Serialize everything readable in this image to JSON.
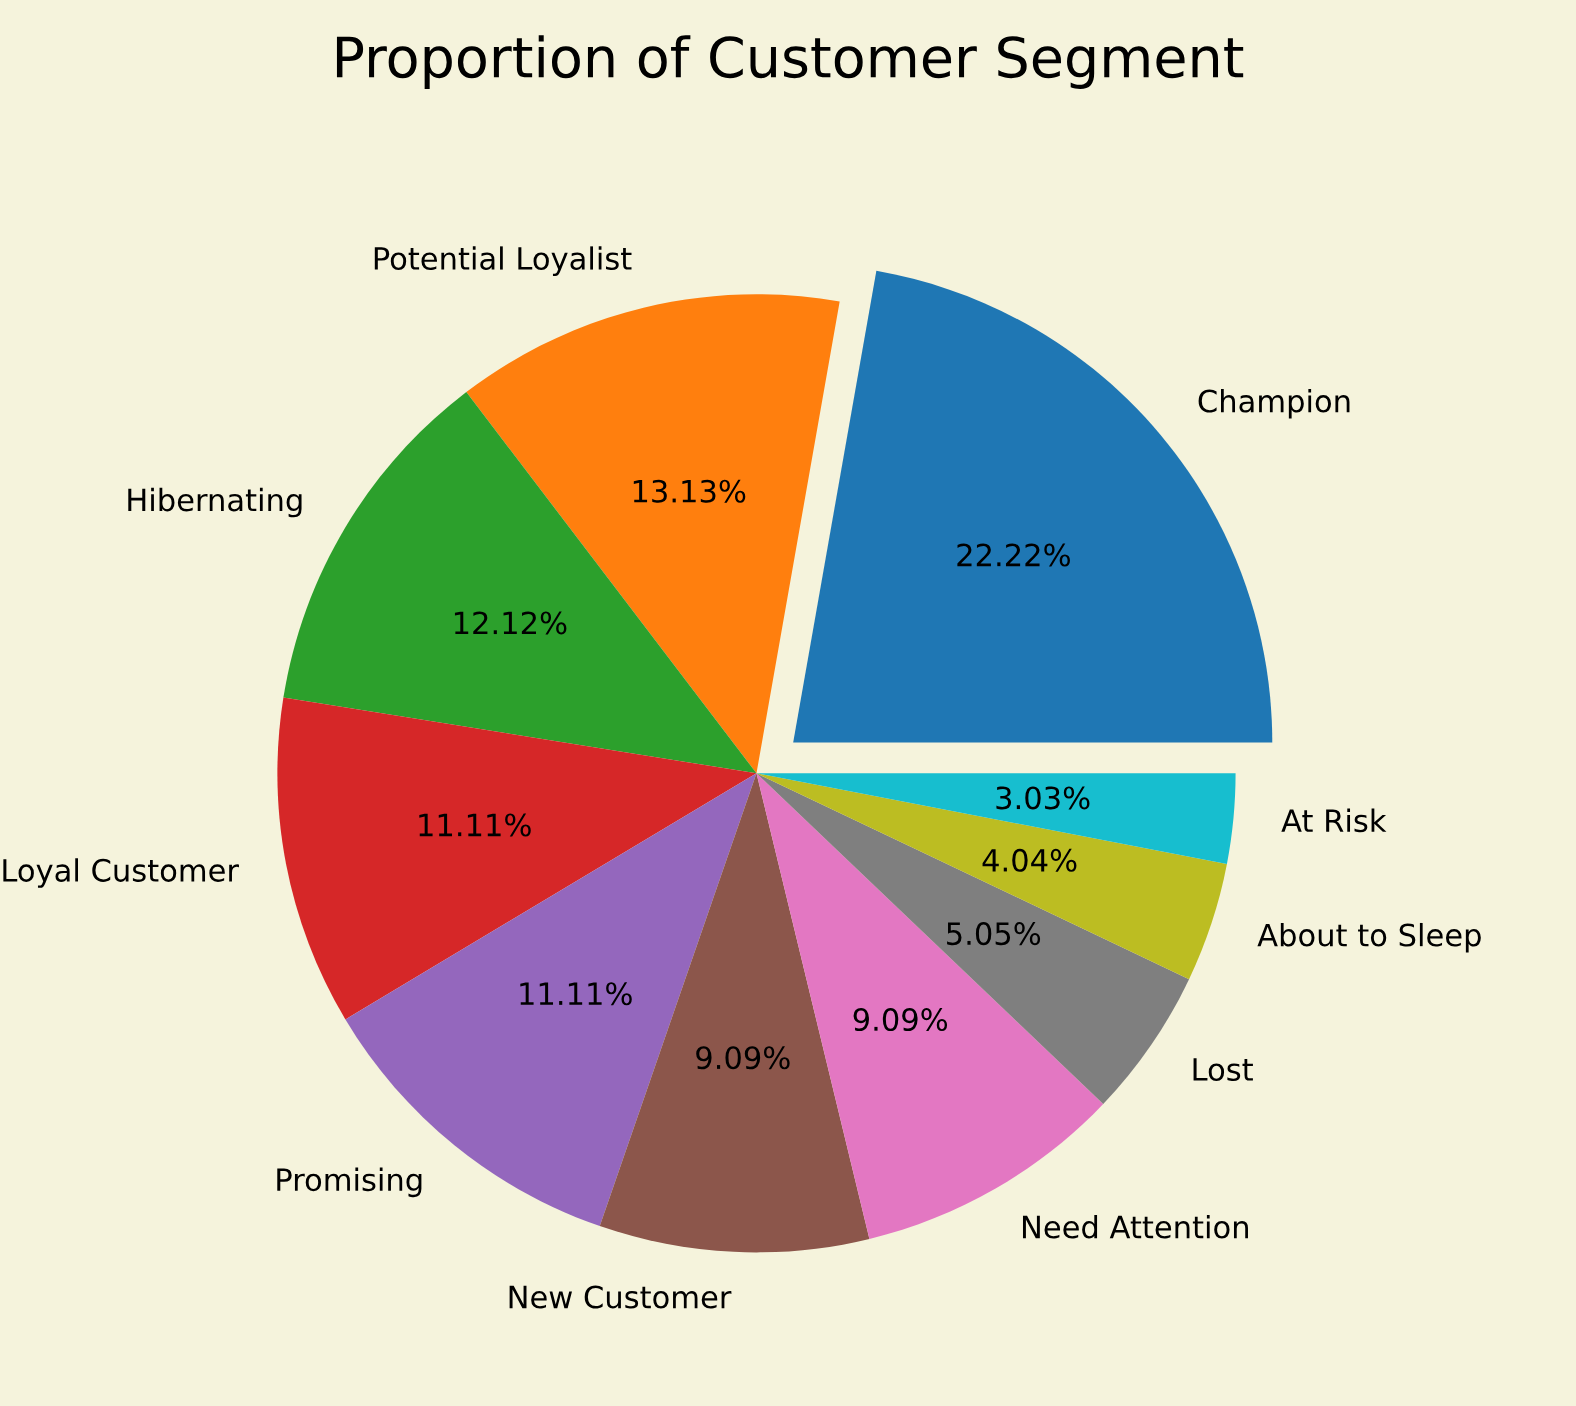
{
  "chart_data": {
    "type": "pie",
    "title": "Proportion of Customer Segment",
    "categories": [
      "Champion",
      "Potential Loyalist",
      "Hibernating",
      "Loyal Customer",
      "Promising",
      "New Customer",
      "Need Attention",
      "Lost",
      "About to Sleep",
      "At Risk"
    ],
    "values": [
      22.22,
      13.13,
      12.12,
      11.11,
      11.11,
      9.09,
      9.09,
      5.05,
      4.04,
      3.03
    ],
    "value_labels": [
      "22.22%",
      "13.13%",
      "12.12%",
      "11.11%",
      "11.11%",
      "9.09%",
      "9.09%",
      "5.05%",
      "4.04%",
      "3.03%"
    ],
    "colors": [
      "#1f77b4",
      "#ff7f0e",
      "#2ca02c",
      "#d62728",
      "#9467bd",
      "#8c564b",
      "#e377c2",
      "#7f7f7f",
      "#bcbd22",
      "#17becf"
    ]
  }
}
